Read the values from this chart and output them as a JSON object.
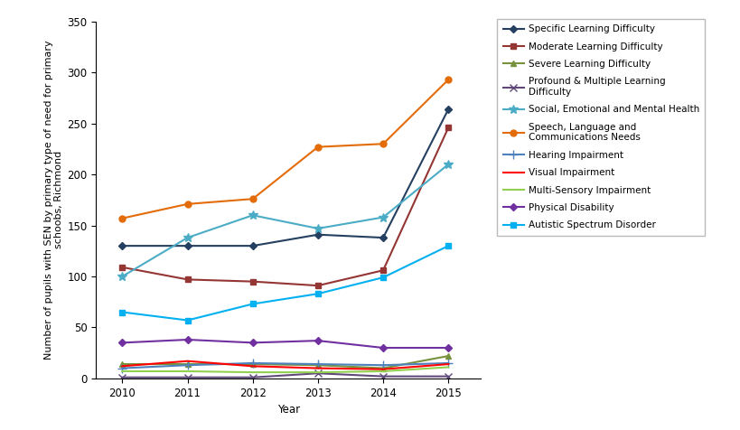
{
  "years": [
    2010,
    2011,
    2012,
    2013,
    2014,
    2015
  ],
  "series": [
    {
      "label": "Specific Learning Difficulty",
      "color": "#243F60",
      "marker": "D",
      "markersize": 4,
      "linestyle": "-",
      "values": [
        130,
        130,
        130,
        141,
        138,
        264
      ]
    },
    {
      "label": "Moderate Learning Difficulty",
      "color": "#943634",
      "marker": "s",
      "markersize": 4,
      "linestyle": "-",
      "values": [
        109,
        97,
        95,
        91,
        106,
        246
      ]
    },
    {
      "label": "Severe Learning Difficulty",
      "color": "#76923C",
      "marker": "^",
      "markersize": 4,
      "linestyle": "-",
      "values": [
        14,
        14,
        14,
        13,
        10,
        22
      ]
    },
    {
      "label": "Profound & Multiple Learning\nDifficulty",
      "color": "#60497A",
      "marker": "x",
      "markersize": 6,
      "linestyle": "-",
      "values": [
        1,
        1,
        1,
        5,
        2,
        2
      ]
    },
    {
      "label": "Social, Emotional and Mental Health",
      "color": "#4BACC6",
      "marker": "*",
      "markersize": 7,
      "linestyle": "-",
      "values": [
        100,
        138,
        160,
        147,
        158,
        210
      ]
    },
    {
      "label": "Speech, Language and\nCommunications Needs",
      "color": "#E36C09",
      "marker": "o",
      "markersize": 5,
      "linestyle": "-",
      "values": [
        157,
        171,
        176,
        227,
        230,
        293
      ]
    },
    {
      "label": "Hearing Impairment",
      "color": "#4F81BD",
      "marker": "+",
      "markersize": 7,
      "linestyle": "-",
      "values": [
        10,
        13,
        15,
        14,
        13,
        15
      ]
    },
    {
      "label": "Visual Impairment",
      "color": "#FF0000",
      "marker": "None",
      "markersize": 4,
      "linestyle": "-",
      "values": [
        12,
        17,
        12,
        10,
        9,
        14
      ]
    },
    {
      "label": "Multi-Sensory Impairment",
      "color": "#92D050",
      "marker": "None",
      "markersize": 4,
      "linestyle": "-",
      "values": [
        7,
        7,
        6,
        6,
        7,
        11
      ]
    },
    {
      "label": "Physical Disability",
      "color": "#7030A0",
      "marker": "D",
      "markersize": 4,
      "linestyle": "-",
      "values": [
        35,
        38,
        35,
        37,
        30,
        30
      ]
    },
    {
      "label": "Autistic Spectrum Disorder",
      "color": "#00B0F0",
      "marker": "s",
      "markersize": 4,
      "linestyle": "-",
      "values": [
        65,
        57,
        73,
        83,
        99,
        130
      ]
    }
  ],
  "xlabel": "Year",
  "ylabel": "Number of pupils with SEN by primary type of need for primary\nschoobs, Richmond",
  "ylim": [
    0,
    350
  ],
  "yticks": [
    0,
    50,
    100,
    150,
    200,
    250,
    300,
    350
  ],
  "background_color": "#ffffff",
  "legend_fontsize": 7.5,
  "axis_fontsize": 8.5,
  "figsize": [
    8.19,
    4.76
  ],
  "dpi": 100
}
